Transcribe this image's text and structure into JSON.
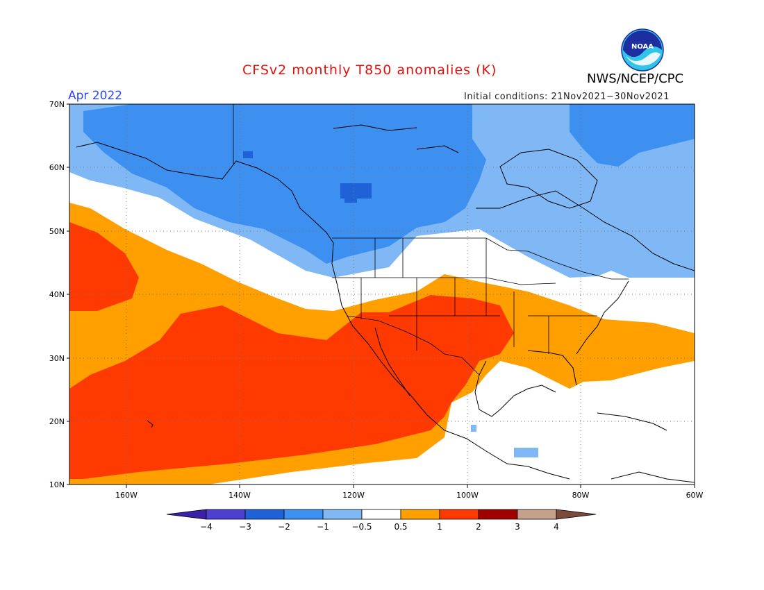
{
  "title": "CFSv2 monthly T850 anomalies (K)",
  "agency": "NWS/NCEP/CPC",
  "logo_text": "NOAA",
  "valid_month": "Apr 2022",
  "initial_conditions": "Initial conditions: 21Nov2021−30Nov2021",
  "colors": {
    "title": "#e01010",
    "valid_month": "#2b45ff",
    "bins": [
      "#3a1fa8",
      "#4d3fd0",
      "#1f62d8",
      "#3d8ff0",
      "#7fb8f4",
      "#ffffff",
      "#ff9f00",
      "#ff3a00",
      "#a00000",
      "#c7a08b",
      "#7a4a3a"
    ]
  },
  "lat_labels": [
    "70N",
    "60N",
    "50N",
    "40N",
    "30N",
    "20N",
    "10N"
  ],
  "lon_labels": [
    "160W",
    "140W",
    "120W",
    "100W",
    "80W",
    "60W"
  ],
  "colorbar_labels": [
    "−4",
    "−3",
    "−2",
    "−1",
    "−0.5",
    "0.5",
    "1",
    "2",
    "3",
    "4"
  ],
  "extent": {
    "lon_min": -170,
    "lon_max": -60,
    "lat_min": 10,
    "lat_max": 70
  }
}
